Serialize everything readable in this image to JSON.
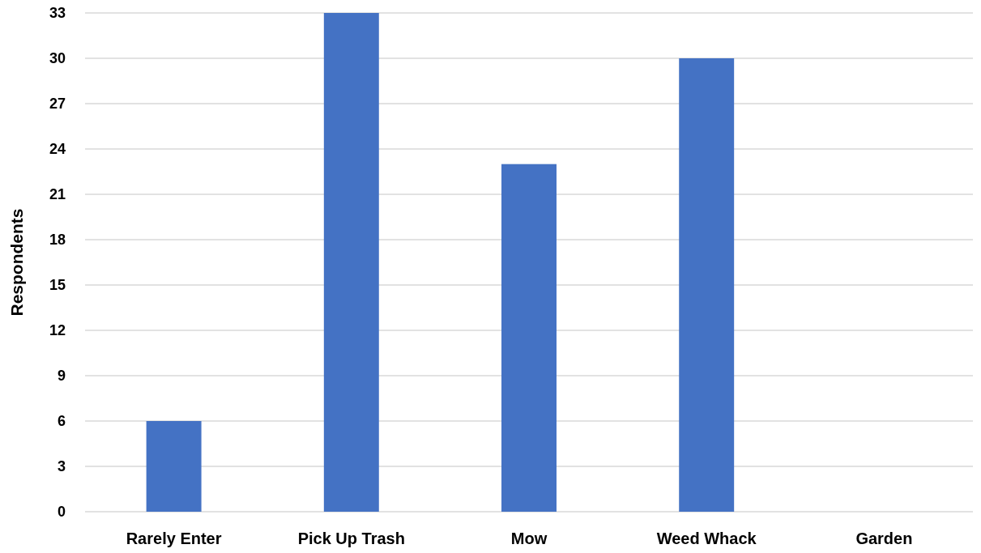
{
  "chart_data": {
    "type": "bar",
    "ylabel": "Respondents",
    "categories": [
      "Rarely Enter",
      "Pick Up Trash",
      "Mow",
      "Weed Whack",
      "Garden"
    ],
    "values": [
      6,
      33,
      23,
      30,
      0
    ],
    "color": "#4472c4",
    "ylim": [
      0,
      33
    ],
    "yticks": [
      0,
      3,
      6,
      9,
      12,
      15,
      18,
      21,
      24,
      27,
      30,
      33
    ],
    "grid": "y"
  }
}
